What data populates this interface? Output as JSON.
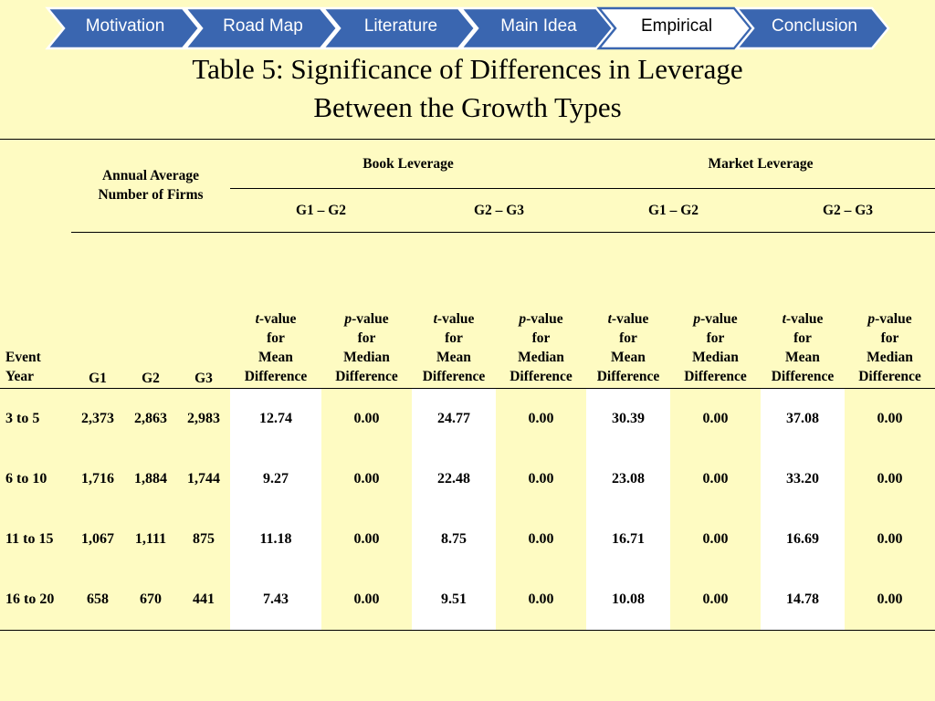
{
  "nav": {
    "items": [
      {
        "label": "Motivation"
      },
      {
        "label": "Road Map"
      },
      {
        "label": "Literature"
      },
      {
        "label": "Main Idea"
      },
      {
        "label": "Empirical"
      },
      {
        "label": "Conclusion"
      }
    ],
    "active_index": 4,
    "colors": {
      "fill": "#3a66b0",
      "active_fill": "#ffffff",
      "border": "#ffffff",
      "active_border": "#3a66b0"
    }
  },
  "title": {
    "line1": "Table 5: Significance of Differences in Leverage",
    "line2": "Between the Growth Types"
  },
  "table": {
    "group_header_firms_line1": "Annual Average",
    "group_header_firms_line2": "Number of Firms",
    "group_header_book": "Book Leverage",
    "group_header_market": "Market Leverage",
    "pairs": [
      "G1 – G2",
      "G2 – G3",
      "G1 – G2",
      "G2 – G3"
    ],
    "event_year_line1": "Event",
    "event_year_line2": "Year",
    "firm_cols": [
      "G1",
      "G2",
      "G3"
    ],
    "stat_t": {
      "prefix": "t",
      "line1_rest": "-value",
      "line2": "for",
      "line3": "Mean",
      "line4": "Difference"
    },
    "stat_p": {
      "prefix": "p",
      "line1_rest": "-value",
      "line2": "for",
      "line3": "Median",
      "line4": "Difference"
    },
    "rows": [
      {
        "year": "3 to 5",
        "g1": "2,373",
        "g2": "2,863",
        "g3": "2,983",
        "vals": [
          "12.74",
          "0.00",
          "24.77",
          "0.00",
          "30.39",
          "0.00",
          "37.08",
          "0.00"
        ]
      },
      {
        "year": "6 to 10",
        "g1": "1,716",
        "g2": "1,884",
        "g3": "1,744",
        "vals": [
          "9.27",
          "0.00",
          "22.48",
          "0.00",
          "23.08",
          "0.00",
          "33.20",
          "0.00"
        ]
      },
      {
        "year": "11 to 15",
        "g1": "1,067",
        "g2": "1,111",
        "g3": "875",
        "vals": [
          "11.18",
          "0.00",
          "8.75",
          "0.00",
          "16.71",
          "0.00",
          "16.69",
          "0.00"
        ]
      },
      {
        "year": "16 to 20",
        "g1": "658",
        "g2": "670",
        "g3": "441",
        "vals": [
          "7.43",
          "0.00",
          "9.51",
          "0.00",
          "10.08",
          "0.00",
          "14.78",
          "0.00"
        ]
      }
    ],
    "colors": {
      "background": "#fefbc2",
      "highlight_column": "#ffffff"
    }
  }
}
